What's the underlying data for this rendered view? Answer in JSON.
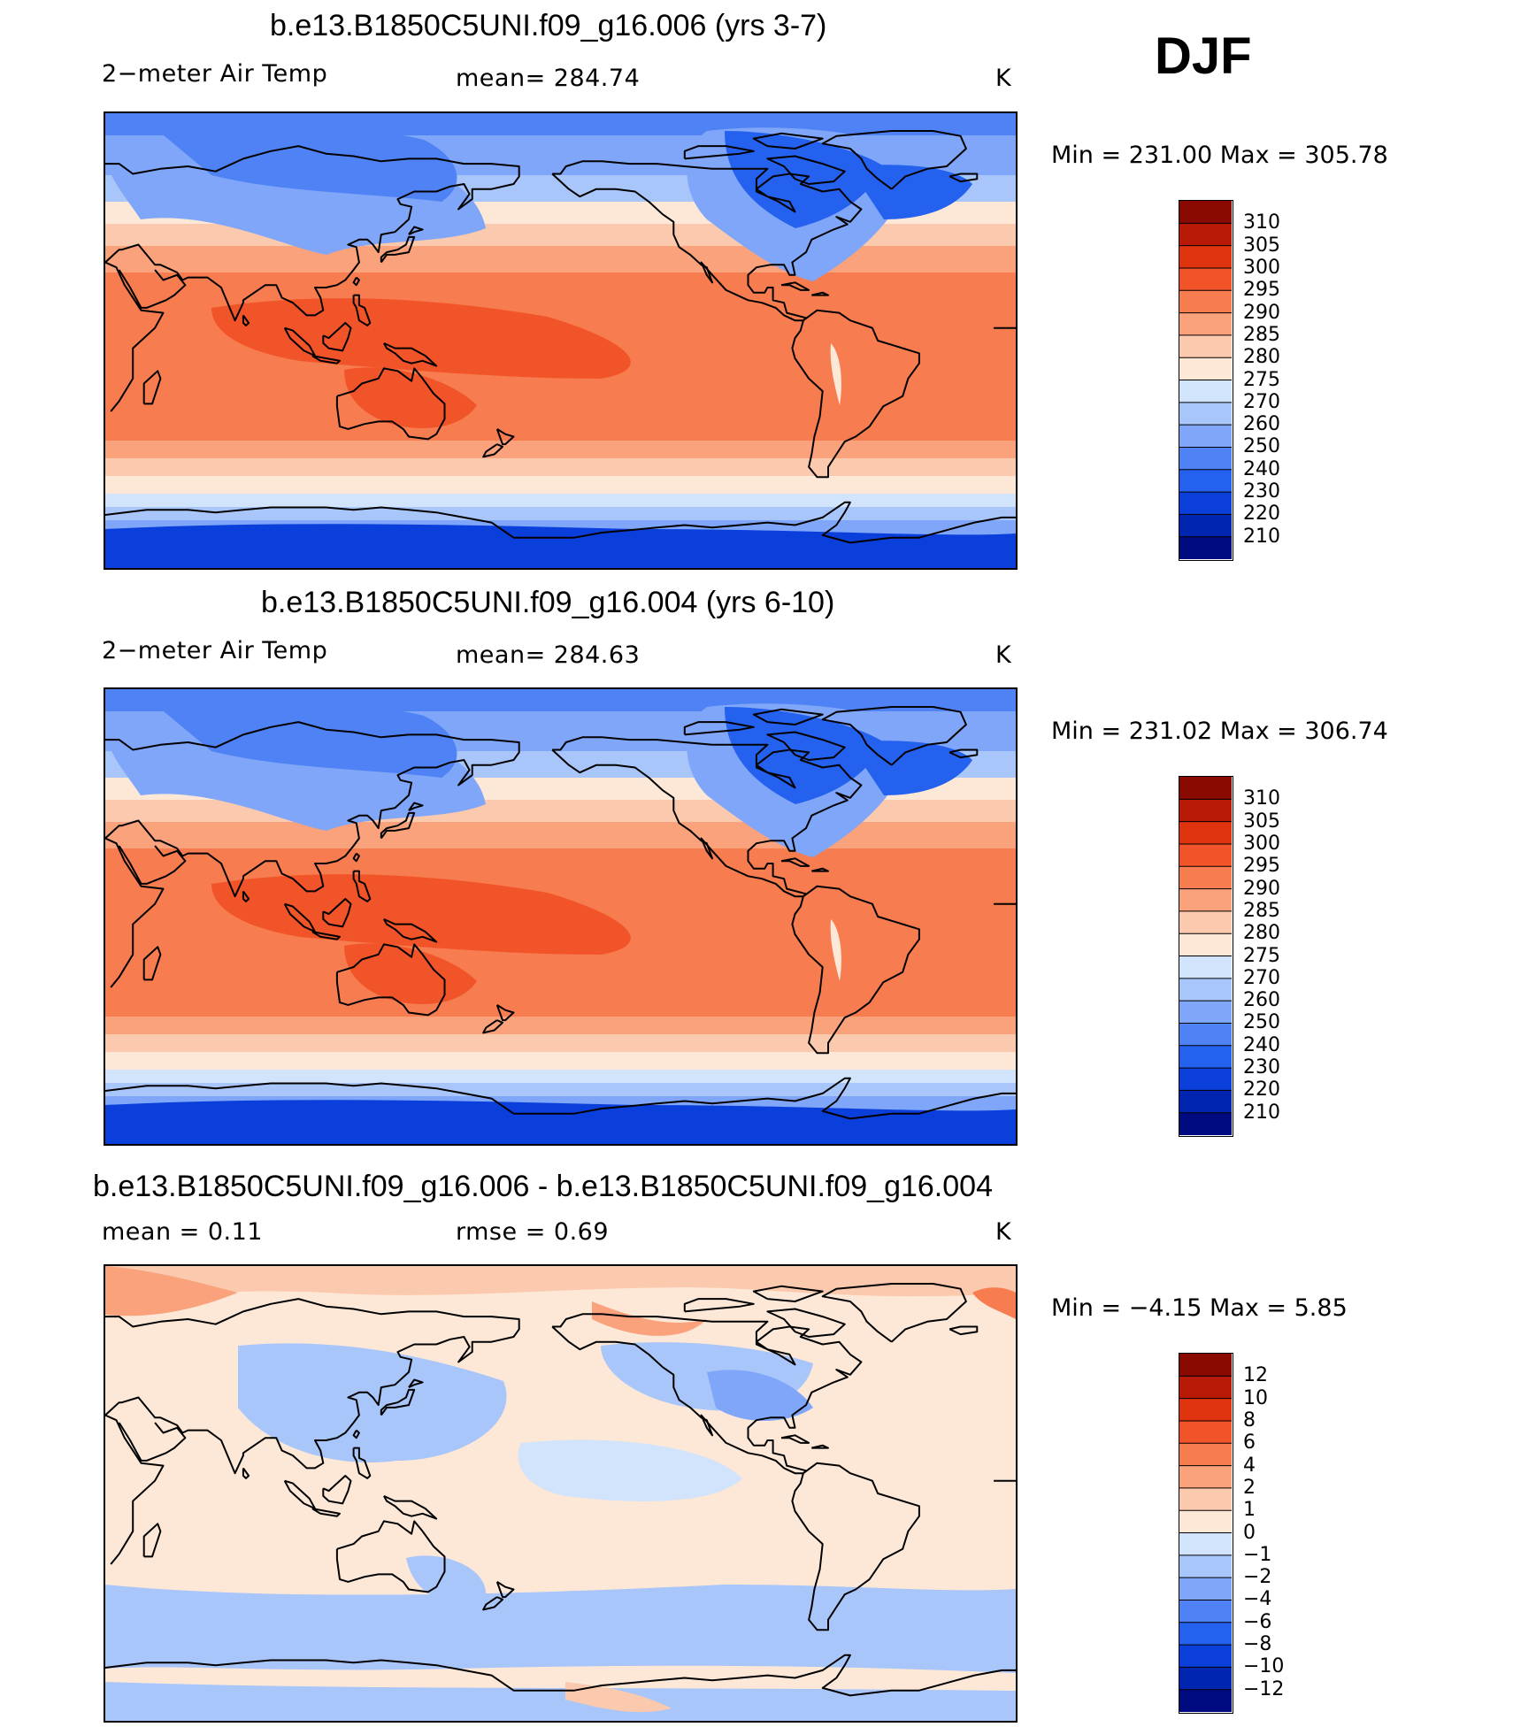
{
  "season": "DJF",
  "panels": [
    {
      "title": "b.e13.B1850C5UNI.f09_g16.006 (yrs 3-7)",
      "left_label": "2−meter Air Temp",
      "center_label": "mean=  284.74",
      "units": "K",
      "minmax": "Min  =  231.00  Max  =  305.78",
      "colorbar": {
        "colors": [
          "#000a80",
          "#0025b0",
          "#0a3fdc",
          "#2461ee",
          "#4f82f4",
          "#7fa6f8",
          "#a9c6fa",
          "#d2e4fb",
          "#fde8d8",
          "#fbc9ad",
          "#f9a27c",
          "#f77c4f",
          "#f2542a",
          "#e0330f",
          "#b81a07",
          "#8a0a02"
        ],
        "ticks": [
          "210",
          "220",
          "230",
          "240",
          "250",
          "260",
          "270",
          "275",
          "280",
          "285",
          "290",
          "295",
          "300",
          "305",
          "310"
        ]
      },
      "map_type": "absolute"
    },
    {
      "title": "b.e13.B1850C5UNI.f09_g16.004 (yrs 6-10)",
      "left_label": "2−meter Air Temp",
      "center_label": "mean=  284.63",
      "units": "K",
      "minmax": "Min  =  231.02  Max  =  306.74",
      "colorbar": {
        "colors": [
          "#000a80",
          "#0025b0",
          "#0a3fdc",
          "#2461ee",
          "#4f82f4",
          "#7fa6f8",
          "#a9c6fa",
          "#d2e4fb",
          "#fde8d8",
          "#fbc9ad",
          "#f9a27c",
          "#f77c4f",
          "#f2542a",
          "#e0330f",
          "#b81a07",
          "#8a0a02"
        ],
        "ticks": [
          "210",
          "220",
          "230",
          "240",
          "250",
          "260",
          "270",
          "275",
          "280",
          "285",
          "290",
          "295",
          "300",
          "305",
          "310"
        ]
      },
      "map_type": "absolute"
    },
    {
      "title": "b.e13.B1850C5UNI.f09_g16.006 - b.e13.B1850C5UNI.f09_g16.004",
      "left_label": "mean  =     0.11",
      "center_label": "rmse  =     0.69",
      "units": "K",
      "minmax": "Min  =    −4.15  Max  =      5.85",
      "colorbar": {
        "colors": [
          "#000a80",
          "#0025b0",
          "#0a3fdc",
          "#2461ee",
          "#4f82f4",
          "#7fa6f8",
          "#a9c6fa",
          "#d2e4fb",
          "#fde8d8",
          "#fbc9ad",
          "#f9a27c",
          "#f77c4f",
          "#f2542a",
          "#e0330f",
          "#b81a07",
          "#8a0a02"
        ],
        "ticks": [
          "−12",
          "−10",
          "−8",
          "−6",
          "−4",
          "−2",
          "−1",
          "0",
          "1",
          "2",
          "4",
          "6",
          "8",
          "10",
          "12"
        ]
      },
      "map_type": "difference"
    }
  ]
}
